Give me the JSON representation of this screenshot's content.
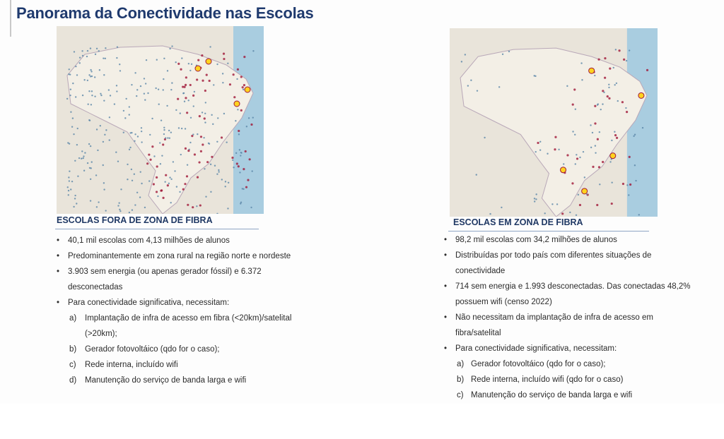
{
  "title": "Panorama da Conectividade nas Escolas",
  "left": {
    "heading": "ESCOLAS FORA DE ZONA DE FIBRA",
    "bullets": [
      "40,1 mil escolas com 4,13 milhões de alunos",
      "Predominantemente em zona rural na região norte e nordeste",
      "3.903 sem energia (ou apenas gerador fóssil) e 6.372",
      "desconectadas",
      "Para conectividade significativa, necessitam:"
    ],
    "sub": [
      {
        "letter": "a)",
        "text": "Implantação de infra de acesso em fibra (<20km)/satelital",
        "cont": "(>20km);"
      },
      {
        "letter": "b)",
        "text": "Gerador fotovoltáico (qdo for o caso);"
      },
      {
        "letter": "c)",
        "text": "Rede interna, incluído wifi"
      },
      {
        "letter": "d)",
        "text": "Manutenção do serviço de banda larga e wifi"
      }
    ]
  },
  "right": {
    "heading": "ESCOLAS EM ZONA DE FIBRA",
    "bullets": [
      "98,2 mil escolas com 34,2 milhões de alunos",
      "Distribuídas por todo país com diferentes situações de",
      "conectividade",
      "714 sem energia e 1.993 desconectadas. Das conectadas 48,2%",
      "possuem wifi (censo 2022)",
      "Não necessitam da implantação de infra de acesso em",
      "fibra/satelital",
      "Para conectividade significativa, necessitam:"
    ],
    "sub": [
      {
        "letter": "a)",
        "text": "Gerador fotovoltáico (qdo for o caso);"
      },
      {
        "letter": "b)",
        "text": "Rede interna, incluído wifi (qdo for o caso)"
      },
      {
        "letter": "c)",
        "text": "Manutenção do serviço de banda larga e wifi"
      }
    ]
  },
  "colors": {
    "title": "#1f3a6e",
    "dots": "#5a86a8",
    "hot": "#a01838",
    "peak": "#ffd21f"
  }
}
